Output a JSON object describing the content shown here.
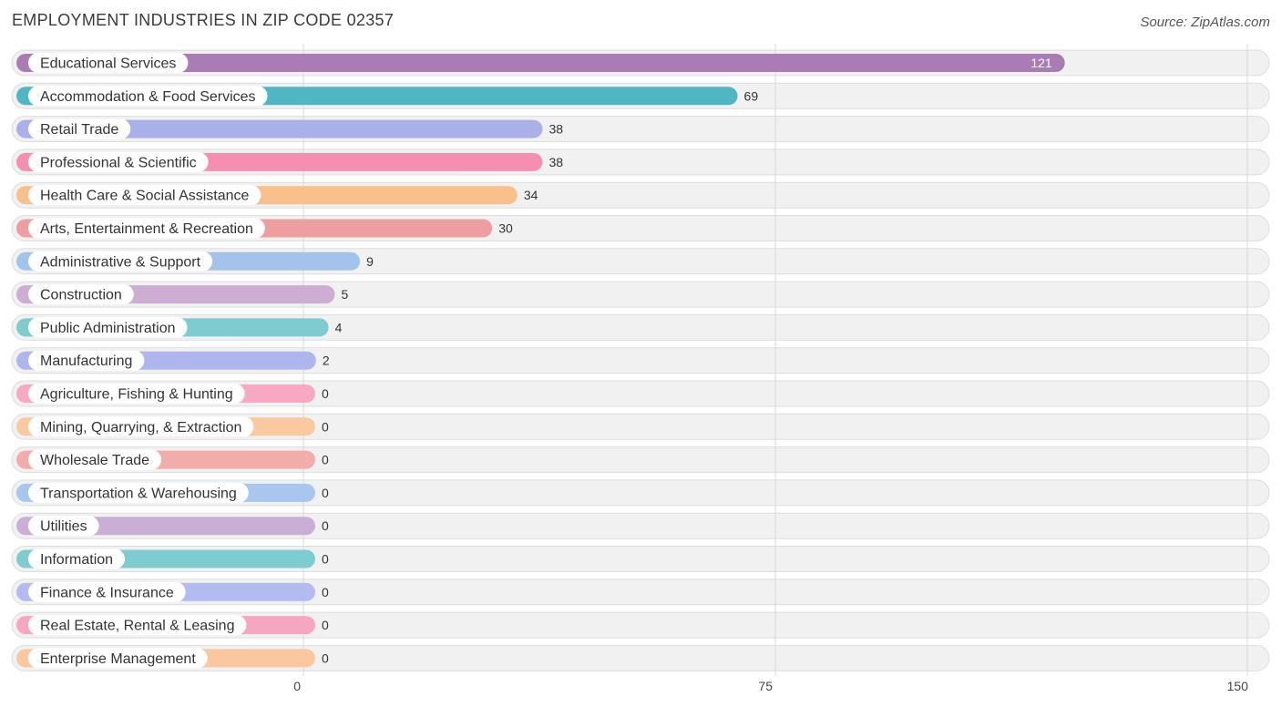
{
  "title": "EMPLOYMENT INDUSTRIES IN ZIP CODE 02357",
  "source": "Source: ZipAtlas.com",
  "chart_data": {
    "type": "bar",
    "orientation": "horizontal",
    "title": "EMPLOYMENT INDUSTRIES IN ZIP CODE 02357",
    "xlim": [
      0,
      150
    ],
    "xticks": [
      0,
      75,
      150
    ],
    "grid": true,
    "categories": [
      "Educational Services",
      "Accommodation & Food Services",
      "Retail Trade",
      "Professional & Scientific",
      "Health Care & Social Assistance",
      "Arts, Entertainment & Recreation",
      "Administrative & Support",
      "Construction",
      "Public Administration",
      "Manufacturing",
      "Agriculture, Fishing & Hunting",
      "Mining, Quarrying, & Extraction",
      "Wholesale Trade",
      "Transportation & Warehousing",
      "Utilities",
      "Information",
      "Finance & Insurance",
      "Real Estate, Rental & Leasing",
      "Enterprise Management"
    ],
    "values": [
      121,
      69,
      38,
      38,
      34,
      30,
      9,
      5,
      4,
      2,
      0,
      0,
      0,
      0,
      0,
      0,
      0,
      0,
      0
    ],
    "colors": [
      "#a97db4",
      "#4fb7c4",
      "#a9b1e8",
      "#f48fb1",
      "#f9c08c",
      "#ee9e9e",
      "#a4c3ea",
      "#ccaed3",
      "#7ecbd0",
      "#afb6ee",
      "#f7a8c3",
      "#f9c9a0",
      "#f2adab",
      "#a9c6ee",
      "#c9aed5",
      "#7ecbd1",
      "#b3bcf0",
      "#f7a6c2",
      "#f9c8a0"
    ]
  }
}
